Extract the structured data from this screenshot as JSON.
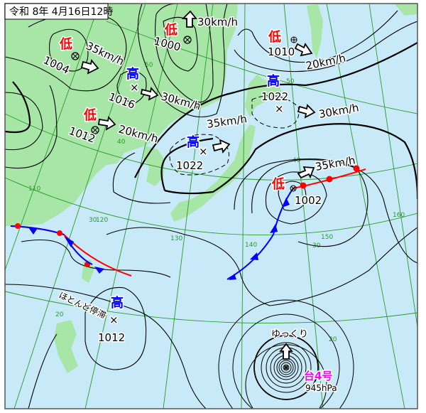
{
  "title": "令和 8年 4月16日12時",
  "colors": {
    "land": "#a8e6a8",
    "sea": "#c8eaf8",
    "low": "#ff0000",
    "high": "#0000ff",
    "typhoon": "#ff00ff",
    "grid": "#2a9a2a"
  },
  "systems": {
    "low_1004": {
      "kind": "低",
      "pressure": "1004",
      "speed": "35km/h",
      "icon": "low-center-icon"
    },
    "high_1016": {
      "kind": "高",
      "pressure": "1016",
      "speed": "30km/h"
    },
    "low_1012": {
      "kind": "低",
      "pressure": "1012",
      "speed": "20km/h"
    },
    "low_1000": {
      "kind": "低",
      "pressure": "1000",
      "speed": "30km/h"
    },
    "low_1010": {
      "kind": "低",
      "pressure": "1010",
      "speed": "20km/h"
    },
    "high_1022_n": {
      "kind": "高",
      "pressure": "1022",
      "speed": "30km/h"
    },
    "high_1022_w": {
      "kind": "高",
      "pressure": "1022",
      "speed": "35km/h"
    },
    "low_1002": {
      "kind": "低",
      "pressure": "1002",
      "speed": "35km/h"
    },
    "high_1012_s": {
      "kind": "高",
      "pressure": "1012",
      "speed": "ほとんど停滞"
    },
    "typhoon": {
      "name": "台4号",
      "pressure": "945hPa",
      "speed": "ゆっくり"
    }
  },
  "grid_labels": {
    "lat50": "50",
    "lat40": "40",
    "lat30": "30",
    "lat20": "20",
    "lat40b": "40",
    "lat50b": "50",
    "lat30b": "30",
    "lat20b": "20",
    "lon110": "110",
    "lon120": "120",
    "lon130": "130",
    "lon140": "140",
    "lon150": "150",
    "lon160": "160"
  }
}
